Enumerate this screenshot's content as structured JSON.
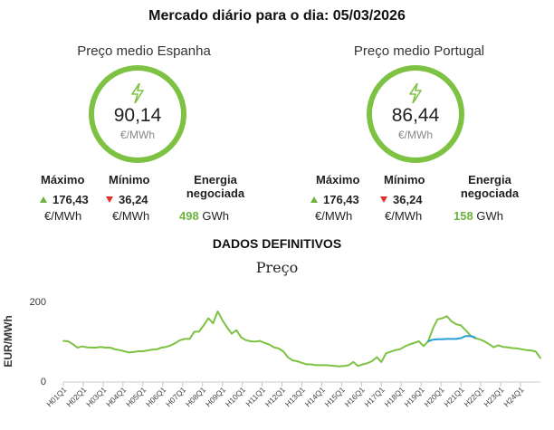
{
  "header": {
    "title": "Mercado diário para o dia: 05/03/2026"
  },
  "spain": {
    "title": "Preço medio Espanha",
    "price": "90,14",
    "unit": "€/MWh",
    "max_label": "Máximo",
    "max_value": "176,43",
    "max_unit": "€/MWh",
    "min_label": "Mínimo",
    "min_value": "36,24",
    "min_unit": "€/MWh",
    "energy_label_1": "Energia",
    "energy_label_2": "negociada",
    "energy_value": "498",
    "energy_unit": "GWh"
  },
  "portugal": {
    "title": "Preço medio Portugal",
    "price": "86,44",
    "unit": "€/MWh",
    "max_label": "Máximo",
    "max_value": "176,43",
    "max_unit": "€/MWh",
    "min_label": "Mínimo",
    "min_value": "36,24",
    "min_unit": "€/MWh",
    "energy_label_1": "Energia",
    "energy_label_2": "negociada",
    "energy_value": "158",
    "energy_unit": "GWh"
  },
  "section": {
    "title": "DADOS DEFINITIVOS"
  },
  "colors": {
    "green": "#7dc242",
    "blue": "#2a9ed8",
    "up": "#6cb33f",
    "down": "#e0312b"
  },
  "icons": {
    "gauge": "lightning-bolt-icon"
  },
  "chart_data": {
    "type": "line",
    "title": "Preço",
    "ylabel": "EUR/MWh",
    "xlabel": "",
    "ylim": [
      0,
      200
    ],
    "yticks": [
      0,
      200
    ],
    "grid": false,
    "x_tick_labels": [
      "H01Q1",
      "H02Q1",
      "H03Q1",
      "H04Q1",
      "H05Q1",
      "H06Q1",
      "H07Q1",
      "H08Q1",
      "H09Q1",
      "H10Q1",
      "H11Q1",
      "H12Q1",
      "H13Q1",
      "H14Q1",
      "H15Q1",
      "H16Q1",
      "H17Q1",
      "H18Q1",
      "H19Q1",
      "H20Q1",
      "H21Q1",
      "H22Q1",
      "H23Q1",
      "H24Q1"
    ],
    "series": [
      {
        "color": "#7dc242",
        "values": [
          101,
          100,
          93,
          84,
          87,
          85,
          84,
          84,
          86,
          84,
          84,
          80,
          78,
          75,
          72,
          73,
          75,
          75,
          77,
          79,
          80,
          84,
          86,
          90,
          96,
          103,
          106,
          106,
          124,
          124,
          140,
          158,
          145,
          175,
          153,
          135,
          119,
          128,
          110,
          103,
          100,
          99,
          101,
          96,
          92,
          85,
          82,
          75,
          60,
          52,
          50,
          46,
          42,
          42,
          40,
          40,
          40,
          39,
          38,
          37,
          38,
          40,
          48,
          38,
          42,
          45,
          50,
          60,
          48,
          70,
          74,
          78,
          80,
          87,
          92,
          96,
          100,
          88,
          100,
          132,
          155,
          158,
          163,
          150,
          143,
          140,
          128,
          115,
          108,
          105,
          100,
          93,
          85,
          90,
          86,
          85,
          83,
          82,
          80,
          78,
          77,
          74,
          58
        ]
      },
      {
        "color": "#2a9ed8",
        "values": [
          null,
          null,
          null,
          null,
          null,
          null,
          null,
          null,
          null,
          null,
          null,
          null,
          null,
          null,
          null,
          null,
          null,
          null,
          null,
          null,
          null,
          null,
          null,
          null,
          null,
          null,
          null,
          null,
          null,
          null,
          null,
          null,
          null,
          null,
          null,
          null,
          null,
          null,
          null,
          null,
          null,
          null,
          null,
          null,
          null,
          null,
          null,
          null,
          null,
          null,
          null,
          null,
          null,
          null,
          null,
          null,
          null,
          null,
          null,
          null,
          null,
          null,
          null,
          null,
          null,
          null,
          null,
          null,
          null,
          null,
          null,
          null,
          null,
          null,
          null,
          null,
          null,
          null,
          100,
          104,
          105,
          105,
          106,
          106,
          106,
          108,
          113,
          113,
          110,
          null,
          null,
          null,
          null,
          null,
          null,
          null,
          null,
          null,
          null,
          null,
          null,
          null,
          null
        ]
      }
    ]
  }
}
